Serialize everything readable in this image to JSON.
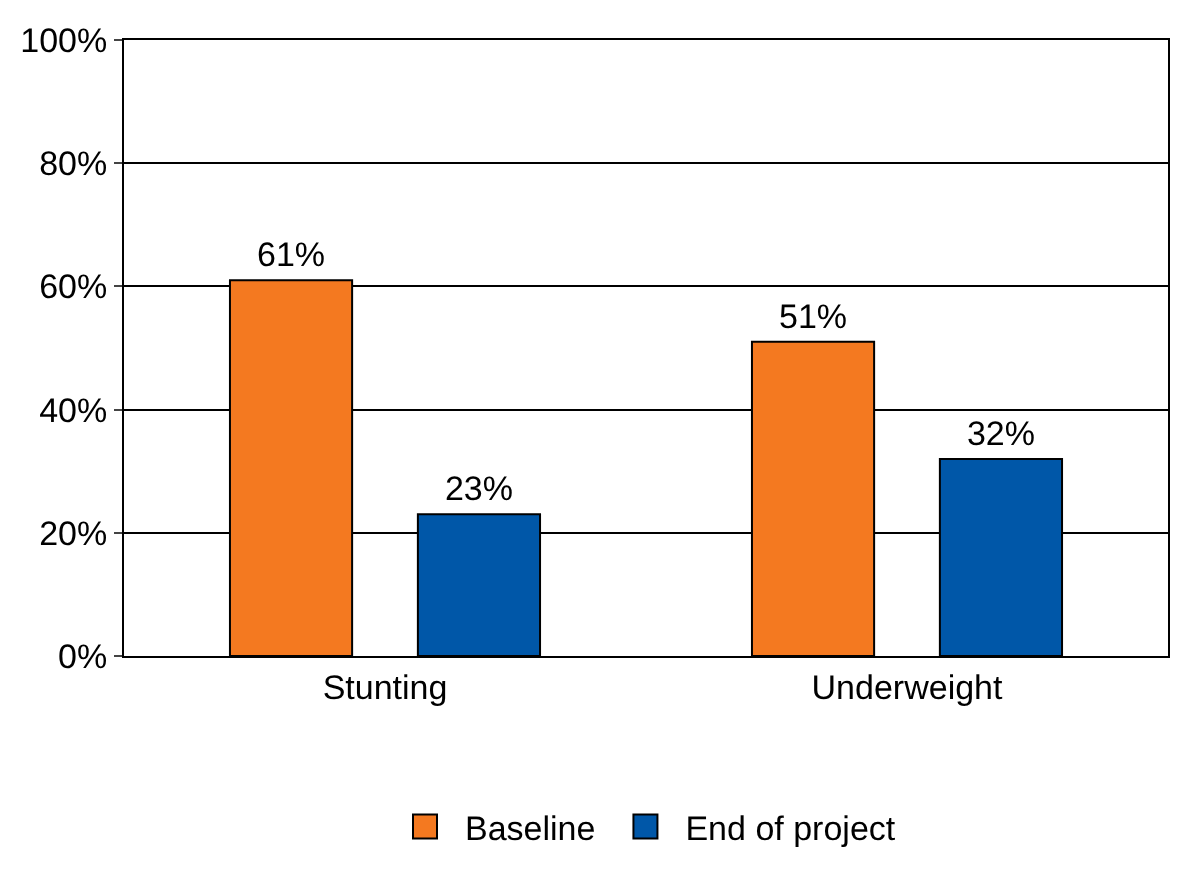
{
  "chart_data": {
    "type": "bar",
    "categories": [
      "Stunting",
      "Underweight"
    ],
    "series": [
      {
        "name": "Baseline",
        "color": "#f47920",
        "values": [
          61,
          51
        ],
        "value_labels": [
          "61%",
          "51%"
        ]
      },
      {
        "name": "End of project",
        "color": "#0057a8",
        "values": [
          23,
          32
        ],
        "value_labels": [
          "23%",
          "32%"
        ]
      }
    ],
    "ylim": [
      0,
      100
    ],
    "yticks": [
      {
        "value": 0,
        "label": "0%"
      },
      {
        "value": 20,
        "label": "20%"
      },
      {
        "value": 40,
        "label": "40%"
      },
      {
        "value": 60,
        "label": "60%"
      },
      {
        "value": 80,
        "label": "80%"
      },
      {
        "value": 100,
        "label": "100%"
      }
    ],
    "grid": "y",
    "legend": "bottom"
  }
}
